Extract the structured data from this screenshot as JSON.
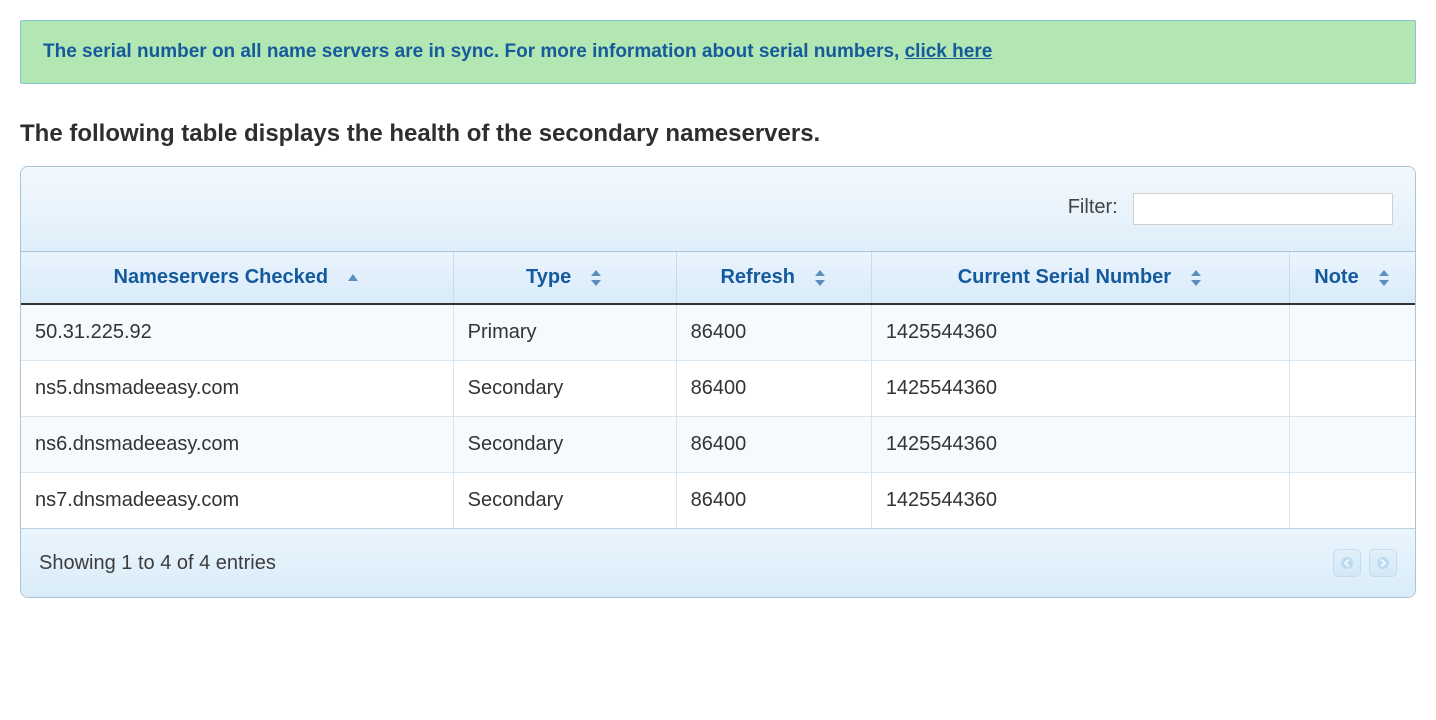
{
  "alert": {
    "text_before_link": "The serial number on all name servers are in sync. For more information about serial numbers, ",
    "link_text": "click here",
    "background_color": "#b2e6b2",
    "text_color": "#155a9c",
    "border_color": "#87c8cf"
  },
  "heading": "The following table displays the health of the secondary nameservers.",
  "filter": {
    "label": "Filter:",
    "value": ""
  },
  "table": {
    "header_text_color": "#155a9c",
    "header_bg_top": "#eaf4fd",
    "header_bg_bottom": "#d8ebf9",
    "columns": [
      {
        "key": "ns",
        "label": "Nameservers Checked",
        "sort": "asc"
      },
      {
        "key": "type",
        "label": "Type",
        "sort": "both"
      },
      {
        "key": "refresh",
        "label": "Refresh",
        "sort": "both"
      },
      {
        "key": "serial",
        "label": "Current Serial Number",
        "sort": "both"
      },
      {
        "key": "note",
        "label": "Note",
        "sort": "both"
      }
    ],
    "rows": [
      {
        "ns": "50.31.225.92",
        "type": "Primary",
        "refresh": "86400",
        "serial": "1425544360",
        "note": ""
      },
      {
        "ns": "ns5.dnsmadeeasy.com",
        "type": "Secondary",
        "refresh": "86400",
        "serial": "1425544360",
        "note": ""
      },
      {
        "ns": "ns6.dnsmadeeasy.com",
        "type": "Secondary",
        "refresh": "86400",
        "serial": "1425544360",
        "note": ""
      },
      {
        "ns": "ns7.dnsmadeeasy.com",
        "type": "Secondary",
        "refresh": "86400",
        "serial": "1425544360",
        "note": ""
      }
    ]
  },
  "footer": {
    "info": "Showing 1 to 4 of 4 entries"
  }
}
